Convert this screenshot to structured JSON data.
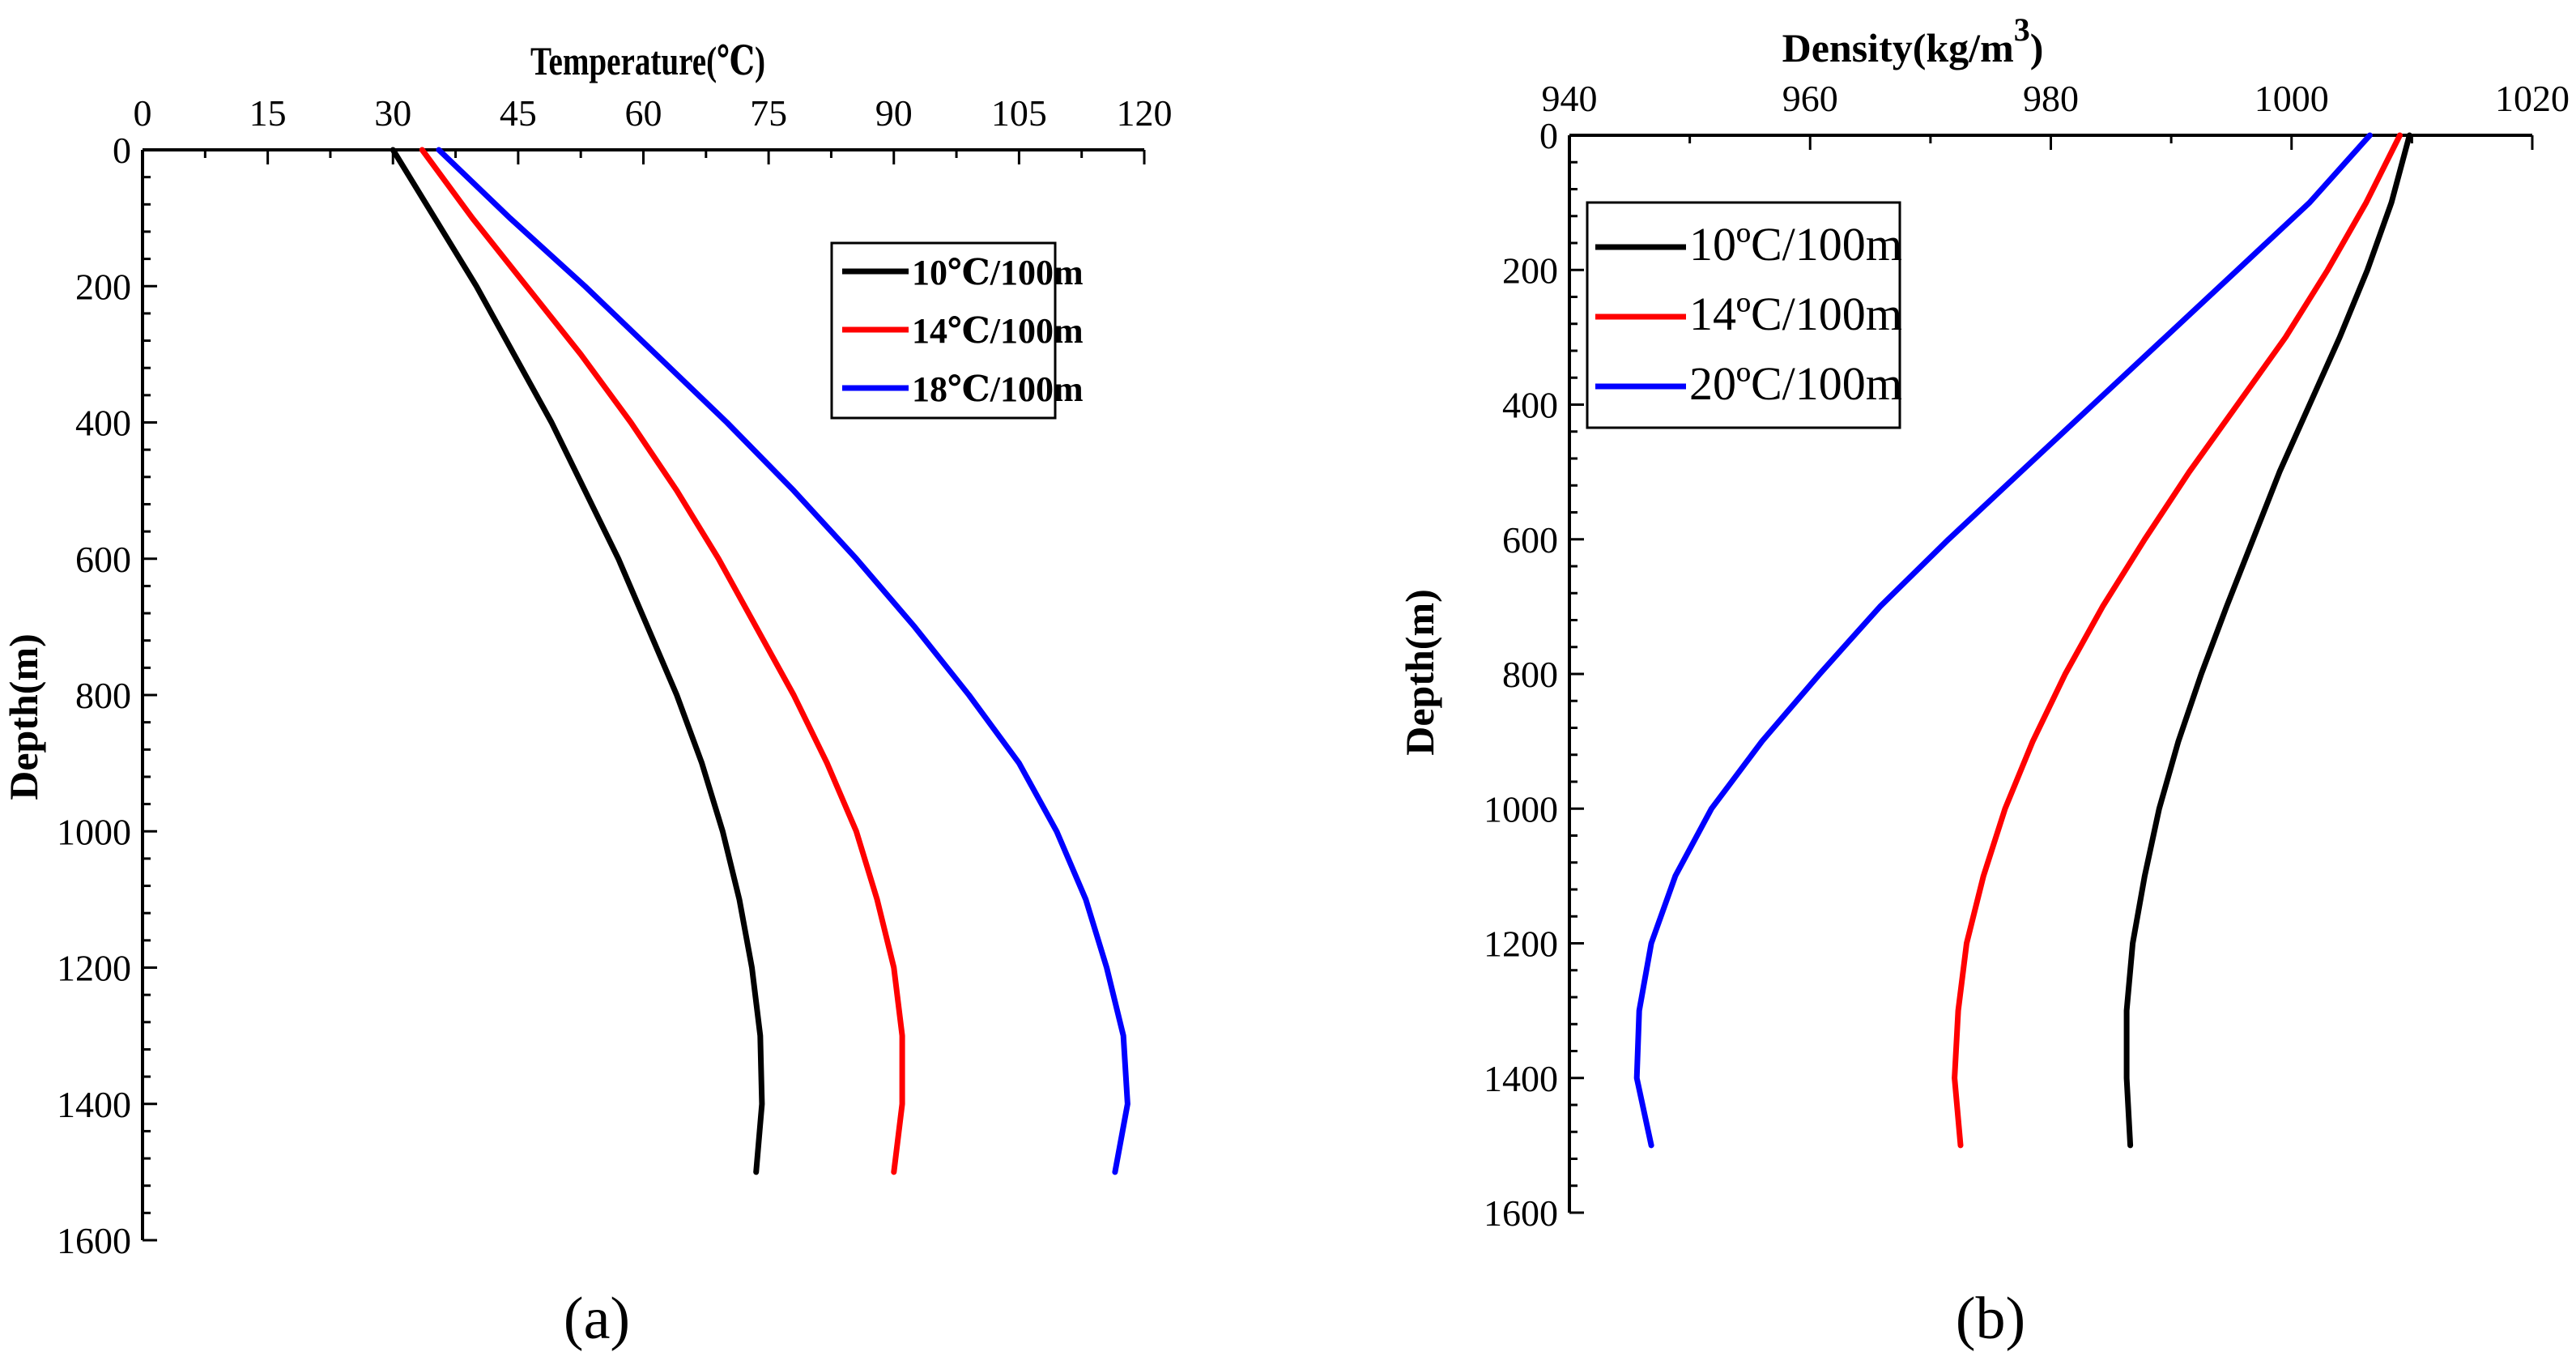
{
  "chart_data": [
    {
      "type": "line",
      "panel_label": "(a)",
      "title": "",
      "xlabel": "Temperature(℃)",
      "ylabel": "Depth(m)",
      "xlim": [
        0,
        120
      ],
      "ylim": [
        0,
        1600
      ],
      "x_ticks": [
        "0",
        "15",
        "30",
        "45",
        "60",
        "75",
        "90",
        "105",
        "120"
      ],
      "y_ticks": [
        "0",
        "200",
        "400",
        "600",
        "800",
        "1000",
        "1200",
        "1400",
        "1600"
      ],
      "x_axis_position": "top",
      "y_reversed": true,
      "legend_position": "top-right",
      "series": [
        {
          "name": "10℃/100m",
          "color": "#000000",
          "depth": [
            0,
            100,
            200,
            300,
            400,
            500,
            600,
            700,
            800,
            900,
            1000,
            1100,
            1200,
            1300,
            1400,
            1500
          ],
          "values": [
            30.0,
            35.0,
            40.0,
            44.5,
            49.0,
            53.0,
            57.0,
            60.5,
            64.0,
            67.0,
            69.5,
            71.5,
            73.0,
            74.0,
            74.2,
            73.5
          ]
        },
        {
          "name": "14℃/100m",
          "color": "#ff0000",
          "depth": [
            0,
            100,
            200,
            300,
            400,
            500,
            600,
            700,
            800,
            900,
            1000,
            1100,
            1200,
            1300,
            1400,
            1500
          ],
          "values": [
            33.5,
            39.5,
            46.0,
            52.5,
            58.5,
            64.0,
            69.0,
            73.5,
            78.0,
            82.0,
            85.5,
            88.0,
            90.0,
            91.0,
            91.0,
            90.0
          ]
        },
        {
          "name": "18℃/100m",
          "color": "#0000ff",
          "depth": [
            0,
            100,
            200,
            300,
            400,
            500,
            600,
            700,
            800,
            900,
            1000,
            1100,
            1200,
            1300,
            1400,
            1500
          ],
          "values": [
            35.5,
            44.0,
            53.0,
            61.5,
            70.0,
            78.0,
            85.5,
            92.5,
            99.0,
            105.0,
            109.5,
            113.0,
            115.5,
            117.5,
            118.0,
            116.5
          ]
        }
      ]
    },
    {
      "type": "line",
      "panel_label": "(b)",
      "title": "",
      "xlabel": "Density(kg/m",
      "xlabel_superscript": "3",
      "xlabel_close": ")",
      "ylabel": "Depth(m)",
      "xlim": [
        940,
        1020
      ],
      "ylim": [
        0,
        1600
      ],
      "x_ticks": [
        "940",
        "960",
        "980",
        "1000",
        "1020"
      ],
      "y_ticks": [
        "0",
        "200",
        "400",
        "600",
        "800",
        "1000",
        "1200",
        "1400",
        "1600"
      ],
      "x_axis_position": "top",
      "y_reversed": true,
      "legend_position": "top-left",
      "series": [
        {
          "name": "10ºC/100m",
          "color": "#000000",
          "depth": [
            0,
            100,
            200,
            300,
            400,
            500,
            600,
            700,
            800,
            900,
            1000,
            1100,
            1200,
            1300,
            1400,
            1500
          ],
          "values": [
            1009.8,
            1008.3,
            1006.3,
            1004.0,
            1001.5,
            999.0,
            996.8,
            994.6,
            992.5,
            990.6,
            989.0,
            987.8,
            986.8,
            986.3,
            986.3,
            986.6
          ]
        },
        {
          "name": "14ºC/100m",
          "color": "#ff0000",
          "depth": [
            0,
            100,
            200,
            300,
            400,
            500,
            600,
            700,
            800,
            900,
            1000,
            1100,
            1200,
            1300,
            1400,
            1500
          ],
          "values": [
            1009.0,
            1006.2,
            1003.0,
            999.5,
            995.5,
            991.5,
            987.8,
            984.3,
            981.2,
            978.5,
            976.2,
            974.4,
            973.0,
            972.3,
            972.0,
            972.5
          ]
        },
        {
          "name": "20ºC/100m",
          "color": "#0000ff",
          "depth": [
            0,
            100,
            200,
            300,
            400,
            500,
            600,
            700,
            800,
            900,
            1000,
            1100,
            1200,
            1300,
            1400,
            1500
          ],
          "values": [
            1006.5,
            1001.5,
            995.5,
            989.5,
            983.5,
            977.5,
            971.5,
            965.8,
            960.8,
            956.0,
            951.8,
            948.8,
            946.8,
            945.8,
            945.6,
            946.8
          ]
        }
      ]
    }
  ]
}
